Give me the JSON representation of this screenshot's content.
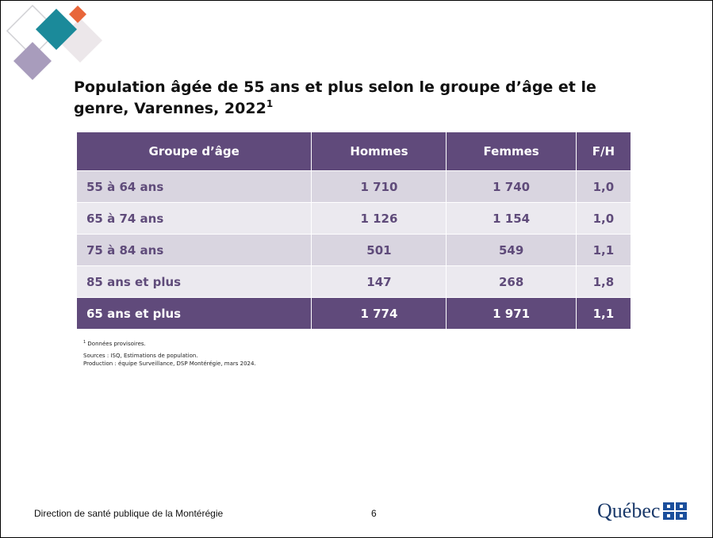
{
  "header": {
    "title": "Population âgée de 55 ans et plus selon le groupe d’âge et le genre, Varennes, 2022",
    "title_note": "1"
  },
  "table": {
    "columns": [
      "Groupe d’âge",
      "Hommes",
      "Femmes",
      "F/H"
    ],
    "rows": [
      [
        "55 à 64 ans",
        "1 710",
        "1 740",
        "1,0"
      ],
      [
        "65 à 74 ans",
        "1 126",
        "1 154",
        "1,0"
      ],
      [
        "75 à 84 ans",
        "501",
        "549",
        "1,1"
      ],
      [
        "85 ans et plus",
        "147",
        "268",
        "1,8"
      ],
      [
        "65 ans et plus",
        "1 774",
        "1 971",
        "1,1"
      ]
    ]
  },
  "notes": {
    "note_mark": "1",
    "note": "Données provisoires.",
    "sources": "Sources : ISQ, Estimations de population.",
    "production": "Production : équipe Surveillance, DSP Montérégie,  mars 2024."
  },
  "footer": {
    "organization": "Direction de santé publique de la Montérégie",
    "page": "6",
    "logo": "Québec"
  }
}
